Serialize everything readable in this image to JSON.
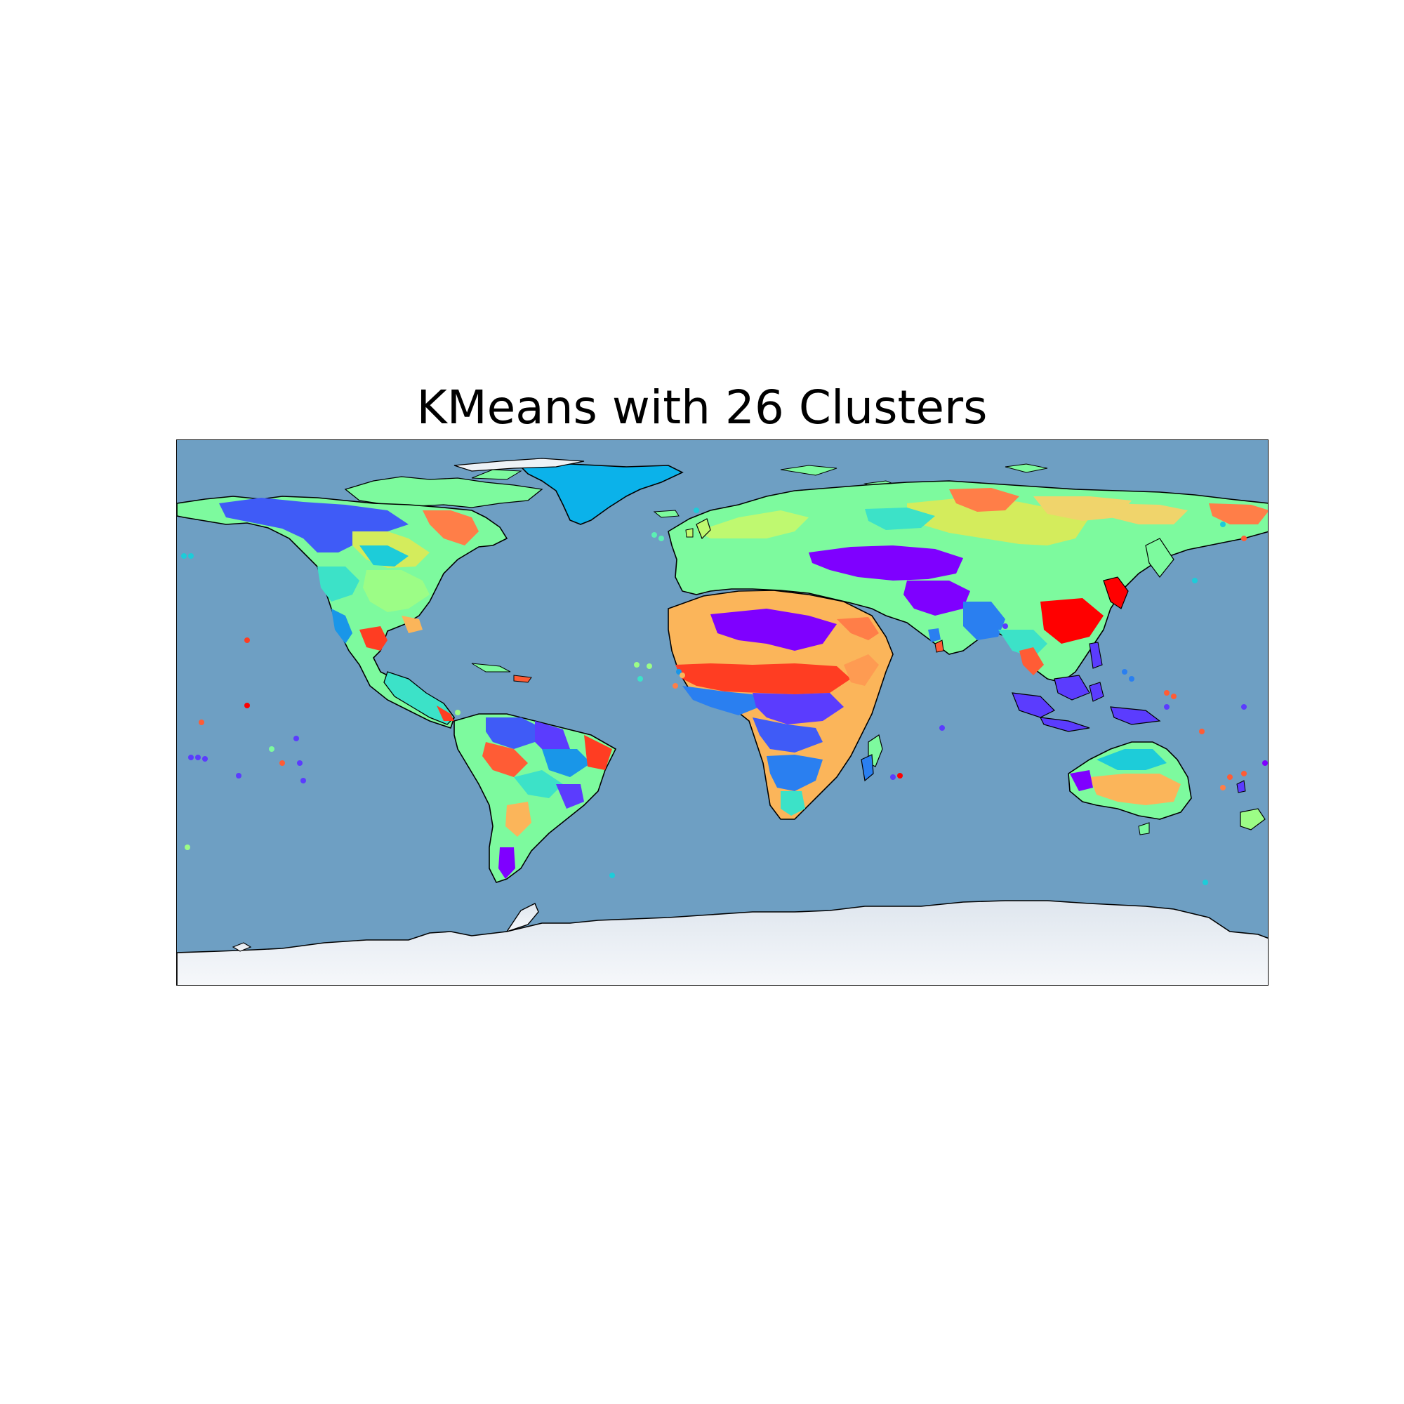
{
  "title": "KMeans with 26 Clusters",
  "map": {
    "projection": "equirectangular",
    "extent_lon": [
      -180,
      180
    ],
    "extent_lat": [
      -90,
      90
    ],
    "n_clusters": 26,
    "colors": {
      "ocean": "#6e9fc3",
      "ice": "#eef2f6",
      "coast": "#000000",
      "greenland": "#0bb2ea"
    },
    "cluster_palette": [
      "#7f00ff",
      "#5b3cfe",
      "#3f5bf7",
      "#2a7ff0",
      "#1996e8",
      "#0bb2ea",
      "#1dccd9",
      "#3ce2c8",
      "#5cf0b3",
      "#7dfa9e",
      "#9cfd86",
      "#bff970",
      "#d4ec5c",
      "#f0d46b",
      "#fbb55a",
      "#fe9b52",
      "#ff7e48",
      "#ff5c35",
      "#ff3d22",
      "#ff0000"
    ]
  }
}
